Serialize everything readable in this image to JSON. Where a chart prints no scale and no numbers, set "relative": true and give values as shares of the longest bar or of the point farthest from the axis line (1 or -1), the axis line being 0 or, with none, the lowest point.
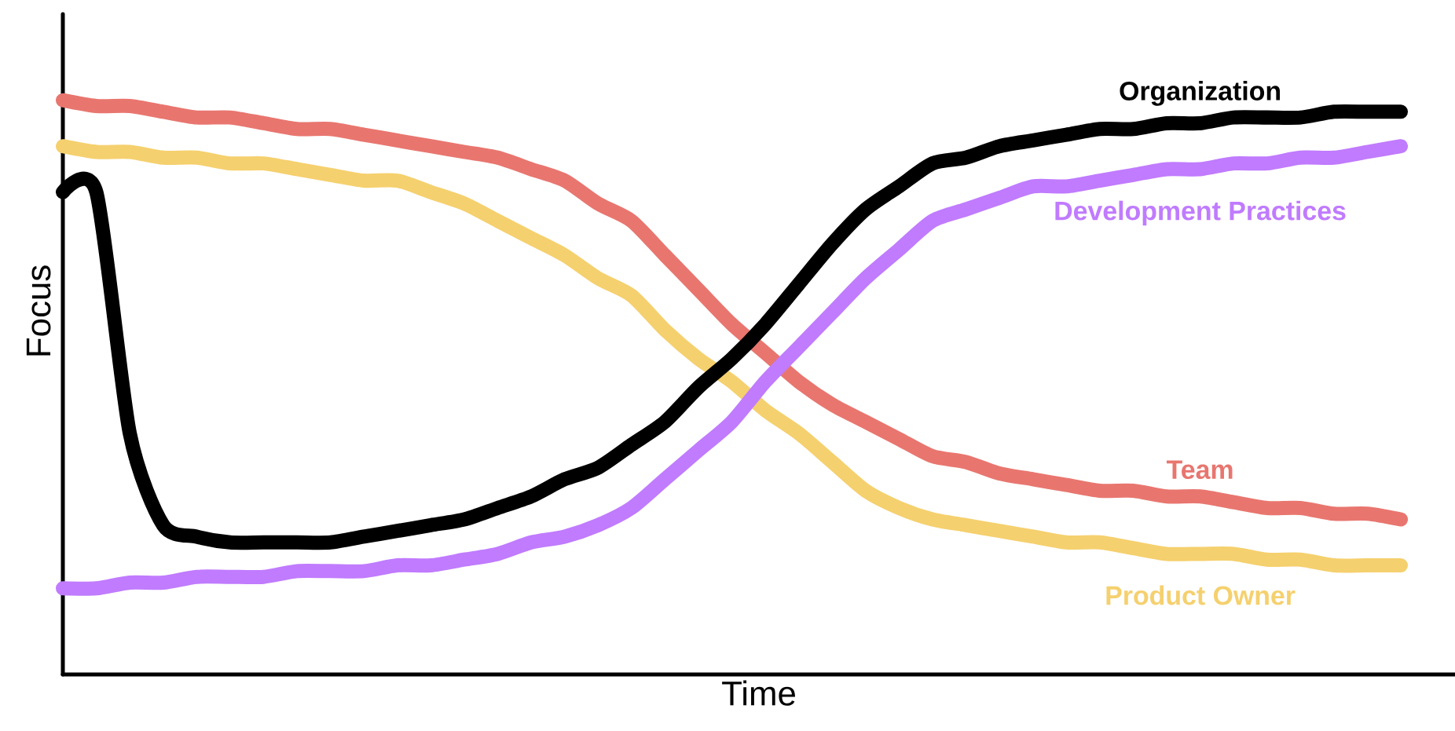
{
  "chart_data": {
    "type": "line",
    "relative": true,
    "xlabel": "Time",
    "ylabel": "Focus",
    "categories": [
      null,
      null,
      null,
      null,
      null,
      null,
      null,
      null,
      null,
      null,
      null,
      null,
      null,
      null,
      null,
      null,
      null,
      null,
      null,
      null,
      null,
      null,
      null,
      null,
      null,
      null,
      null,
      null,
      null,
      null,
      null,
      null,
      null,
      null,
      null,
      null,
      null,
      null,
      null,
      null,
      null
    ],
    "series": [
      {
        "name": "Team",
        "color": "#e8766f",
        "values": [
          1.0,
          0.99,
          0.99,
          0.98,
          0.97,
          0.97,
          0.96,
          0.95,
          0.95,
          0.94,
          0.93,
          0.92,
          0.91,
          0.9,
          0.88,
          0.86,
          0.82,
          0.79,
          0.73,
          0.67,
          0.61,
          0.56,
          0.51,
          0.47,
          0.44,
          0.41,
          0.38,
          0.37,
          0.35,
          0.34,
          0.33,
          0.32,
          0.32,
          0.31,
          0.31,
          0.3,
          0.29,
          0.29,
          0.28,
          0.28,
          0.27
        ]
      },
      {
        "name": "Product Owner",
        "color": "#f5d06e",
        "values": [
          0.92,
          0.91,
          0.91,
          0.9,
          0.9,
          0.89,
          0.89,
          0.88,
          0.87,
          0.86,
          0.86,
          0.84,
          0.82,
          0.79,
          0.76,
          0.73,
          0.69,
          0.66,
          0.6,
          0.55,
          0.51,
          0.46,
          0.42,
          0.37,
          0.32,
          0.29,
          0.27,
          0.26,
          0.25,
          0.24,
          0.23,
          0.23,
          0.22,
          0.21,
          0.21,
          0.21,
          0.2,
          0.2,
          0.19,
          0.19,
          0.19
        ]
      },
      {
        "name": "Development Practices",
        "color": "#c07bff",
        "values": [
          0.15,
          0.15,
          0.16,
          0.16,
          0.17,
          0.17,
          0.17,
          0.18,
          0.18,
          0.18,
          0.19,
          0.19,
          0.2,
          0.21,
          0.23,
          0.24,
          0.26,
          0.29,
          0.34,
          0.39,
          0.44,
          0.51,
          0.57,
          0.63,
          0.69,
          0.74,
          0.79,
          0.81,
          0.83,
          0.85,
          0.85,
          0.86,
          0.87,
          0.88,
          0.88,
          0.89,
          0.89,
          0.9,
          0.9,
          0.91,
          0.92
        ]
      },
      {
        "name": "Organization",
        "color": "#000000",
        "values": [
          0.84,
          0.84,
          0.42,
          0.26,
          0.24,
          0.23,
          0.23,
          0.23,
          0.23,
          0.24,
          0.25,
          0.26,
          0.27,
          0.29,
          0.31,
          0.34,
          0.36,
          0.4,
          0.44,
          0.5,
          0.55,
          0.61,
          0.68,
          0.75,
          0.81,
          0.85,
          0.89,
          0.9,
          0.92,
          0.93,
          0.94,
          0.95,
          0.95,
          0.96,
          0.96,
          0.97,
          0.97,
          0.97,
          0.98,
          0.98,
          0.98
        ]
      }
    ]
  }
}
